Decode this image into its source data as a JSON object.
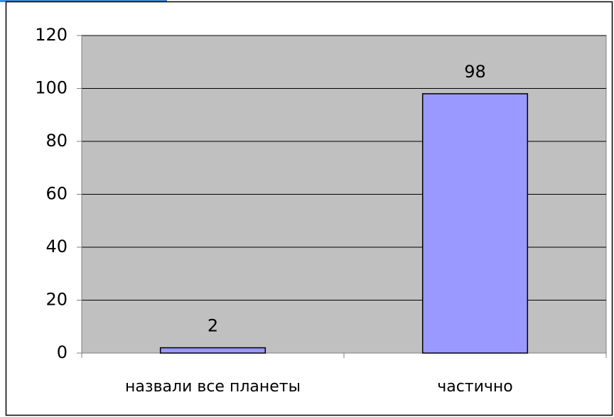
{
  "chart_data": {
    "type": "bar",
    "categories": [
      "назвали все планеты",
      "частично"
    ],
    "values": [
      2,
      98
    ],
    "color": "#9999ff",
    "ylim": [
      0,
      120
    ],
    "yticks": [
      0,
      20,
      40,
      60,
      80,
      100,
      120
    ],
    "grid": true
  }
}
